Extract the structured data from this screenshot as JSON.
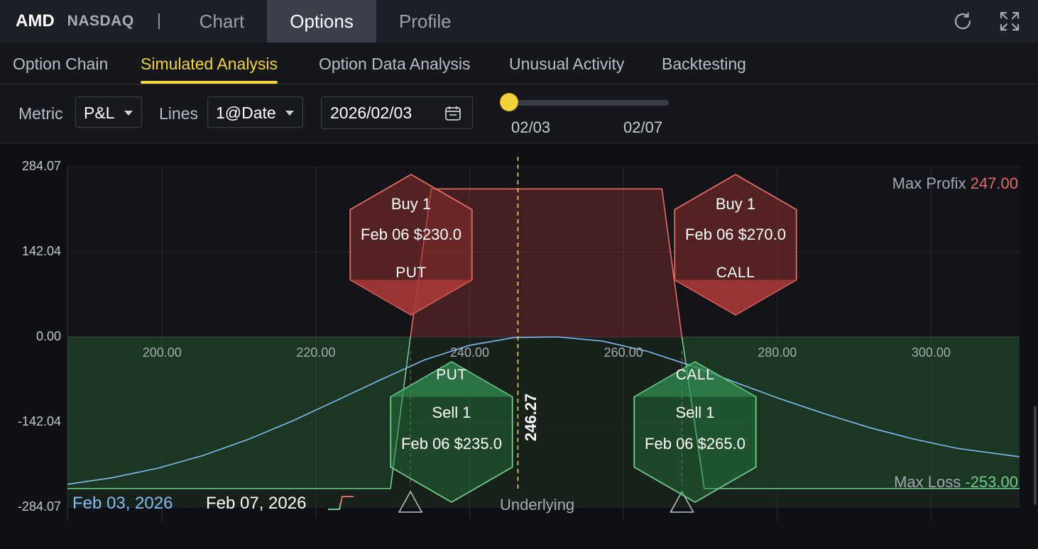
{
  "header": {
    "ticker": "AMD",
    "exchange": "NASDAQ",
    "tabs": [
      {
        "label": "Chart",
        "active": false
      },
      {
        "label": "Options",
        "active": true
      },
      {
        "label": "Profile",
        "active": false
      }
    ],
    "icons": [
      "refresh-icon",
      "fullscreen-icon"
    ]
  },
  "subnav": {
    "tabs": [
      {
        "label": "Option Chain",
        "active": false
      },
      {
        "label": "Simulated Analysis",
        "active": true
      },
      {
        "label": "Option Data Analysis",
        "active": false
      },
      {
        "label": "Unusual Activity",
        "active": false
      },
      {
        "label": "Backtesting",
        "active": false
      }
    ]
  },
  "controls": {
    "metric_label": "Metric",
    "metric_value": "P&L",
    "lines_label": "Lines",
    "lines_value": "1@Date",
    "date_value": "2026/02/03",
    "slider_start": "02/03",
    "slider_end": "02/07",
    "slider_fraction": 0
  },
  "colors": {
    "accent": "#f2d33b",
    "profit": "#e56b62",
    "loss": "#6fcf8d",
    "current_curve": "#7fbdf0"
  },
  "chart_data": {
    "type": "line",
    "title": "",
    "xlabel": "Underlying",
    "ylabel": "",
    "x_ticks": [
      "200.00",
      "220.00",
      "240.00",
      "260.00",
      "280.00",
      "300.00"
    ],
    "y_ticks": [
      "284.07",
      "142.04",
      "0.00",
      "-142.04",
      "-284.07"
    ],
    "xlim": [
      187.7,
      311.5
    ],
    "ylim": [
      -284.07,
      284.07
    ],
    "grid": true,
    "current_price": 246.27,
    "current_price_label": "246.27",
    "max_profit_label": "Max Profix",
    "max_profit_value": "247.00",
    "max_loss_label": "Max Loss",
    "max_loss_value": "-253.00",
    "series": [
      {
        "name": "Feb 03, 2026",
        "x": [
          187.7,
          193.5,
          199.5,
          205.3,
          211.2,
          217.0,
          222.7,
          228.5,
          234.2,
          240.0,
          245.8,
          251.5,
          257.3,
          263.1,
          268.8,
          274.6,
          280.3,
          286.1,
          291.9,
          297.6,
          303.4,
          311.5
        ],
        "y": [
          -246,
          -235,
          -219,
          -198,
          -171,
          -140,
          -106,
          -71,
          -38,
          -14,
          -1,
          0,
          -7,
          -24,
          -48,
          -76,
          -103,
          -128,
          -151,
          -170,
          -186,
          -200
        ]
      },
      {
        "name": "Feb 07, 2026",
        "x": [
          187.7,
          229.7,
          232.3,
          235.0,
          265.0,
          267.6,
          270.5,
          311.5
        ],
        "y": [
          -253,
          -253,
          0,
          247,
          247,
          0,
          -253,
          -253
        ]
      }
    ],
    "legs": [
      {
        "action": "Buy 1",
        "contract": "Feb 06 $230.0",
        "type": "PUT",
        "strike": 230,
        "side": "buy"
      },
      {
        "action": "Sell 1",
        "contract": "Feb 06 $235.0",
        "type": "PUT",
        "strike": 235,
        "side": "sell"
      },
      {
        "action": "Sell 1",
        "contract": "Feb 06 $265.0",
        "type": "CALL",
        "strike": 265,
        "side": "sell"
      },
      {
        "action": "Buy 1",
        "contract": "Feb 06 $270.0",
        "type": "CALL",
        "strike": 270,
        "side": "buy"
      }
    ],
    "breakevens": [
      232.3,
      267.6
    ]
  }
}
